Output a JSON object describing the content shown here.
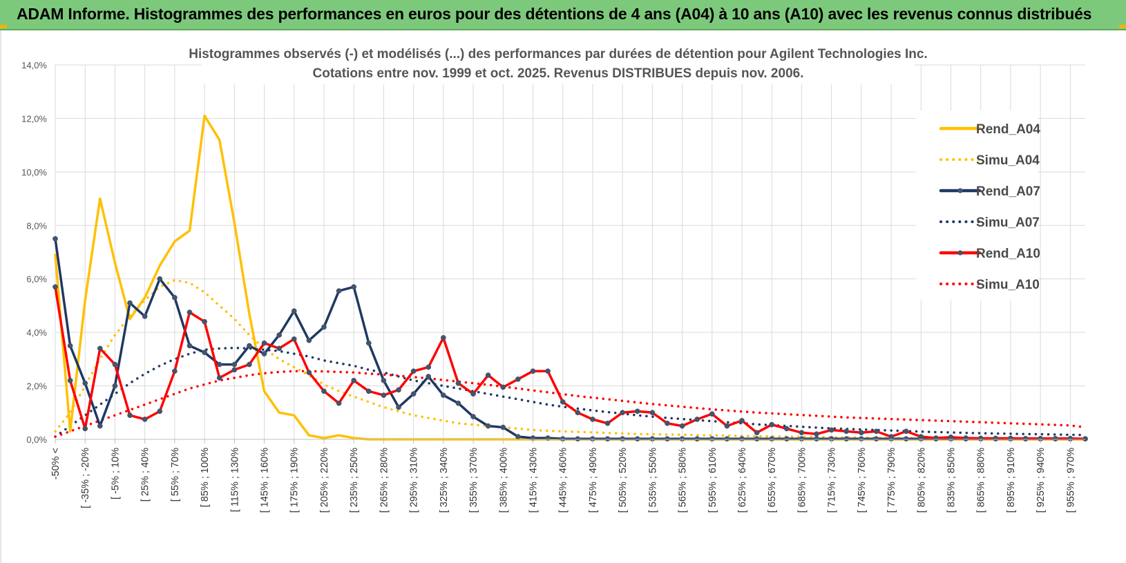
{
  "banner": {
    "title": "ADAM Informe. Histogrammes des performances en euros pour des détentions de 4 ans (A04) à 10 ans (A10) avec les revenus connus distribués"
  },
  "colors": {
    "banner_bg": "#7dc97c",
    "a04": "#FFC000",
    "a07": "#1F3864",
    "a10": "#FF0000",
    "grid": "#d9d9d9"
  },
  "chart_data": {
    "type": "line",
    "title": "Histogrammes observés (-) et modélisés (...) des performances par durées de détention pour Agilent Technologies Inc.",
    "subtitle": "Cotations entre nov. 1999 et oct. 2025.  Revenus DISTRIBUES depuis nov. 2006.",
    "xlabel": "",
    "ylabel": "",
    "ylim": [
      0,
      14
    ],
    "y_ticks": [
      0,
      2,
      4,
      6,
      8,
      10,
      12,
      14
    ],
    "y_tick_labels": [
      "0,0%",
      "2,0%",
      "4,0%",
      "6,0%",
      "8,0%",
      "10,0%",
      "12,0%",
      "14,0%"
    ],
    "grid": true,
    "legend_position": "right",
    "x_tick_labels": [
      "-50% <",
      "[ -35% ; -20%",
      "[ -5% ; 10%",
      "[ 25% ; 40%",
      "[ 55% ; 70%",
      "[ 85% ; 100%",
      "[ 115% ; 130%",
      "[ 145% ; 160%",
      "[ 175% ; 190%",
      "[ 205% ; 220%",
      "[ 235% ; 250%",
      "[ 265% ; 280%",
      "[ 295% ; 310%",
      "[ 325% ; 340%",
      "[ 355% ; 370%",
      "[ 385% ; 400%",
      "[ 415% ; 430%",
      "[ 445% ; 460%",
      "[ 475% ; 490%",
      "[ 505% ; 520%",
      "[ 535% ; 550%",
      "[ 565% ; 580%",
      "[ 595% ; 610%",
      "[ 625% ; 640%",
      "[ 655% ; 670%",
      "[ 685% ; 700%",
      "[ 715% ; 730%",
      "[ 745% ; 760%",
      "[ 775% ; 790%",
      "[ 805% ; 820%",
      "[ 835% ; 850%",
      "[ 865% ; 880%",
      "[ 895% ; 910%",
      "[ 925% ; 940%",
      "[ 955% ; 970%"
    ],
    "n_bins": 70,
    "series": [
      {
        "name": "Rend_A04",
        "style": "solid",
        "color": "#FFC000",
        "markers": false,
        "values": [
          6.9,
          0.3,
          5.2,
          9.0,
          6.6,
          4.5,
          5.3,
          6.5,
          7.4,
          7.8,
          12.1,
          11.2,
          8.1,
          4.7,
          1.8,
          1.0,
          0.9,
          0.15,
          0.05,
          0.15,
          0.05,
          0,
          0,
          0,
          0,
          0,
          0,
          0,
          0,
          0,
          0,
          0,
          0,
          0,
          0,
          0,
          0,
          0,
          0,
          0,
          0,
          0,
          0,
          0,
          0,
          0,
          0,
          0,
          0,
          0,
          0,
          0,
          0,
          0,
          0,
          0,
          0,
          0,
          0,
          0,
          0,
          0,
          0,
          0,
          0,
          0,
          0,
          0,
          0,
          0
        ]
      },
      {
        "name": "Simu_A04",
        "style": "dotted",
        "color": "#FFC000",
        "markers": false,
        "values": [
          0.3,
          1.0,
          2.0,
          3.0,
          3.9,
          4.6,
          5.2,
          5.7,
          5.95,
          5.85,
          5.5,
          5.0,
          4.5,
          3.9,
          3.4,
          3.0,
          2.7,
          2.4,
          2.05,
          1.8,
          1.6,
          1.4,
          1.2,
          1.05,
          0.9,
          0.8,
          0.7,
          0.6,
          0.55,
          0.5,
          0.45,
          0.4,
          0.35,
          0.32,
          0.3,
          0.28,
          0.26,
          0.24,
          0.22,
          0.2,
          0.19,
          0.18,
          0.17,
          0.16,
          0.15,
          0.14,
          0.13,
          0.12,
          0.11,
          0.1,
          0.1,
          0.09,
          0.08,
          0.07,
          0.07,
          0.06,
          0.06,
          0.05,
          0.05,
          0.04,
          0.04,
          0.04,
          0.03,
          0.03,
          0.03,
          0.02,
          0.02,
          0.02,
          0.02,
          0.02
        ]
      },
      {
        "name": "Rend_A07",
        "style": "solid",
        "color": "#1F3864",
        "markers": true,
        "values": [
          7.5,
          3.5,
          2.1,
          0.5,
          2.0,
          5.1,
          4.6,
          6.0,
          5.3,
          3.5,
          3.25,
          2.8,
          2.8,
          3.5,
          3.2,
          3.9,
          4.8,
          3.7,
          4.2,
          5.55,
          5.7,
          3.6,
          2.2,
          1.2,
          1.7,
          2.35,
          1.65,
          1.35,
          0.85,
          0.5,
          0.45,
          0.1,
          0.05,
          0.05,
          0.02,
          0.02,
          0.02,
          0.02,
          0.02,
          0.02,
          0.02,
          0.02,
          0.02,
          0.02,
          0.02,
          0.02,
          0.02,
          0.02,
          0.02,
          0.02,
          0.02,
          0.02,
          0.02,
          0.02,
          0.02,
          0.02,
          0.02,
          0.02,
          0.02,
          0.02,
          0.02,
          0.02,
          0.02,
          0.02,
          0.02,
          0.02,
          0.02,
          0.02,
          0.02,
          0.02
        ]
      },
      {
        "name": "Simu_A07",
        "style": "dotted",
        "color": "#1F3864",
        "markers": false,
        "values": [
          0.1,
          0.5,
          0.9,
          1.3,
          1.7,
          2.1,
          2.45,
          2.75,
          3.0,
          3.2,
          3.35,
          3.4,
          3.42,
          3.4,
          3.35,
          3.3,
          3.2,
          3.1,
          2.95,
          2.85,
          2.75,
          2.6,
          2.5,
          2.35,
          2.2,
          2.1,
          2.0,
          1.9,
          1.8,
          1.7,
          1.6,
          1.5,
          1.4,
          1.3,
          1.22,
          1.15,
          1.08,
          1.02,
          0.96,
          0.9,
          0.85,
          0.8,
          0.76,
          0.72,
          0.68,
          0.64,
          0.6,
          0.56,
          0.53,
          0.5,
          0.47,
          0.44,
          0.41,
          0.39,
          0.37,
          0.35,
          0.33,
          0.31,
          0.29,
          0.27,
          0.26,
          0.24,
          0.23,
          0.22,
          0.21,
          0.2,
          0.19,
          0.18,
          0.17,
          0.16
        ]
      },
      {
        "name": "Rend_A10",
        "style": "solid",
        "color": "#FF0000",
        "markers": true,
        "values": [
          5.7,
          2.2,
          0.4,
          3.4,
          2.8,
          0.9,
          0.75,
          1.05,
          2.55,
          4.75,
          4.4,
          2.3,
          2.6,
          2.8,
          3.6,
          3.4,
          3.75,
          2.5,
          1.8,
          1.35,
          2.2,
          1.8,
          1.65,
          1.85,
          2.55,
          2.7,
          3.8,
          2.1,
          1.7,
          2.4,
          1.95,
          2.25,
          2.55,
          2.55,
          1.4,
          1.0,
          0.75,
          0.6,
          1.0,
          1.05,
          1.0,
          0.6,
          0.5,
          0.75,
          0.95,
          0.5,
          0.7,
          0.25,
          0.55,
          0.4,
          0.25,
          0.2,
          0.35,
          0.3,
          0.25,
          0.3,
          0.1,
          0.3,
          0.1,
          0.05,
          0.08,
          0.05,
          0.04,
          0.04,
          0.04,
          0.03,
          0.03,
          0.03,
          0.03,
          0.02
        ]
      },
      {
        "name": "Simu_A10",
        "style": "dotted",
        "color": "#FF0000",
        "markers": false,
        "values": [
          0.1,
          0.3,
          0.5,
          0.7,
          0.9,
          1.1,
          1.3,
          1.5,
          1.7,
          1.9,
          2.05,
          2.2,
          2.3,
          2.4,
          2.47,
          2.52,
          2.55,
          2.55,
          2.54,
          2.52,
          2.5,
          2.46,
          2.42,
          2.38,
          2.33,
          2.28,
          2.22,
          2.16,
          2.1,
          2.04,
          1.97,
          1.9,
          1.83,
          1.76,
          1.69,
          1.62,
          1.56,
          1.5,
          1.44,
          1.38,
          1.32,
          1.27,
          1.22,
          1.17,
          1.12,
          1.08,
          1.04,
          1.0,
          0.97,
          0.94,
          0.91,
          0.88,
          0.85,
          0.82,
          0.8,
          0.78,
          0.76,
          0.74,
          0.72,
          0.7,
          0.68,
          0.66,
          0.64,
          0.62,
          0.6,
          0.58,
          0.56,
          0.54,
          0.52,
          0.45
        ]
      }
    ]
  }
}
